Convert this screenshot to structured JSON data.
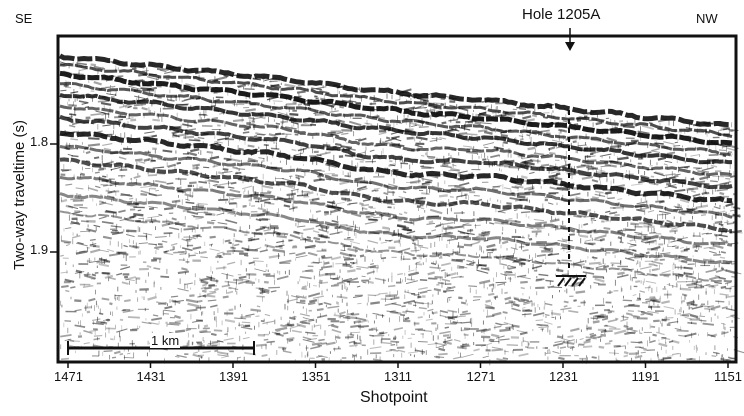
{
  "figure": {
    "direction_left": "SE",
    "direction_right": "NW",
    "hole_label": "Hole 1205A",
    "scale_bar_label": "1 km",
    "x_axis": {
      "label": "Shotpoint",
      "ticks": [
        "1471",
        "1431",
        "1391",
        "1351",
        "1311",
        "1271",
        "1231",
        "1191",
        "1151"
      ]
    },
    "y_axis": {
      "label": "Two-way traveltime (s)",
      "ticks": [
        "1.8",
        "1.9"
      ]
    },
    "colors": {
      "ink": "#111111",
      "background": "#ffffff"
    }
  }
}
